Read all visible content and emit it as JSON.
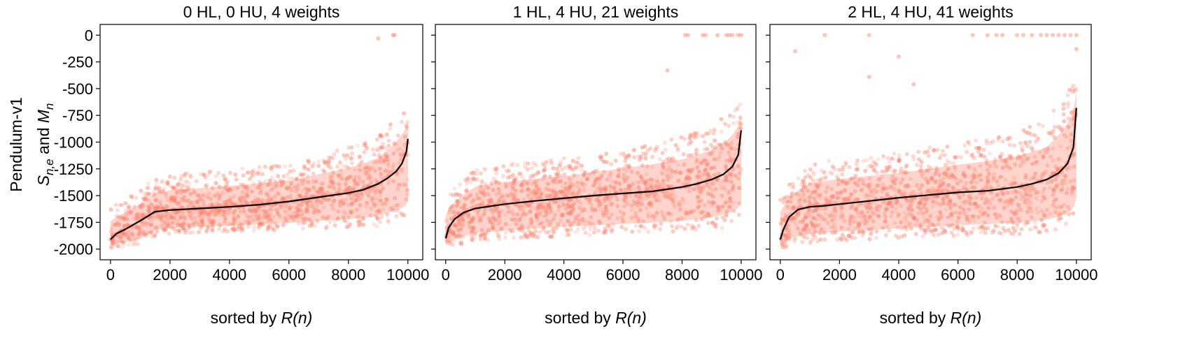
{
  "figure": {
    "row_label": "Pendulum-v1",
    "ylabel_prefix": "S",
    "ylabel_sub": "n,e",
    "ylabel_mid": " and ",
    "ylabel_m": "M",
    "ylabel_msub": "n",
    "xlabel_prefix": "sorted by ",
    "xlabel_italic": "R(n)"
  },
  "colors": {
    "scatter": "#fa7f6a",
    "band": "#ffcfc6",
    "mean_line": "#000000"
  },
  "chart_data": [
    {
      "type": "scatter",
      "title": "0 HL, 0 HU, 4 weights",
      "xlim": [
        -350,
        10500
      ],
      "ylim": [
        -2100,
        100
      ],
      "xticks": [
        "0",
        "2000",
        "4000",
        "6000",
        "8000",
        "10000"
      ],
      "yticks": [
        "0",
        "-250",
        "-500",
        "-750",
        "-1000",
        "-1250",
        "-1500",
        "-1750",
        "-2000"
      ],
      "series": [
        {
          "kind": "mean_line",
          "x": [
            0,
            200,
            500,
            1000,
            1500,
            2000,
            3000,
            4000,
            5000,
            6000,
            7000,
            7500,
            8000,
            8500,
            9000,
            9300,
            9600,
            9800,
            9950,
            10000
          ],
          "y": [
            -1910,
            -1855,
            -1815,
            -1735,
            -1650,
            -1635,
            -1620,
            -1605,
            -1585,
            -1555,
            -1515,
            -1495,
            -1475,
            -1445,
            -1390,
            -1340,
            -1275,
            -1200,
            -1090,
            -970
          ]
        },
        {
          "kind": "scatter_band",
          "x": [
            0,
            1000,
            1500,
            2000,
            4000,
            6000,
            8000,
            9000,
            9500,
            10000
          ],
          "upper": [
            -1600,
            -1450,
            -1330,
            -1300,
            -1250,
            -1200,
            -1050,
            -950,
            -800,
            -650
          ],
          "lower": [
            -1990,
            -1960,
            -1880,
            -1860,
            -1840,
            -1820,
            -1800,
            -1790,
            -1760,
            -1750
          ],
          "outliers": [
            [
              9500,
              0
            ],
            [
              9550,
              0
            ],
            [
              9000,
              -30
            ]
          ]
        }
      ]
    },
    {
      "type": "scatter",
      "title": "1 HL, 4 HU, 21 weights",
      "xlim": [
        -350,
        10500
      ],
      "ylim": [
        -2100,
        100
      ],
      "xticks": [
        "0",
        "2000",
        "4000",
        "6000",
        "8000",
        "10000"
      ],
      "series": [
        {
          "kind": "mean_line",
          "x": [
            0,
            100,
            300,
            600,
            1000,
            1500,
            2000,
            3000,
            4000,
            5000,
            6000,
            7000,
            8000,
            8500,
            9000,
            9400,
            9700,
            9900,
            10000
          ],
          "y": [
            -1900,
            -1800,
            -1720,
            -1660,
            -1620,
            -1600,
            -1580,
            -1550,
            -1525,
            -1500,
            -1480,
            -1460,
            -1420,
            -1390,
            -1350,
            -1300,
            -1230,
            -1120,
            -890
          ]
        },
        {
          "kind": "scatter_band",
          "x": [
            0,
            1000,
            2000,
            4000,
            6000,
            8000,
            9000,
            9500,
            10000
          ],
          "upper": [
            -1500,
            -1250,
            -1200,
            -1150,
            -1050,
            -950,
            -850,
            -750,
            -600
          ],
          "lower": [
            -1990,
            -1930,
            -1910,
            -1880,
            -1860,
            -1840,
            -1820,
            -1800,
            -1780
          ],
          "outliers": [
            [
              8100,
              0
            ],
            [
              8200,
              0
            ],
            [
              8700,
              0
            ],
            [
              8800,
              0
            ],
            [
              9200,
              0
            ],
            [
              9500,
              0
            ],
            [
              9600,
              0
            ],
            [
              9700,
              0
            ],
            [
              9900,
              0
            ],
            [
              10000,
              0
            ],
            [
              7500,
              -330
            ]
          ]
        }
      ]
    },
    {
      "type": "scatter",
      "title": "2 HL, 4 HU, 41 weights",
      "xlim": [
        -350,
        10500
      ],
      "ylim": [
        -2100,
        100
      ],
      "xticks": [
        "0",
        "2000",
        "4000",
        "6000",
        "8000",
        "10000"
      ],
      "series": [
        {
          "kind": "mean_line",
          "x": [
            0,
            100,
            300,
            600,
            1000,
            1500,
            2000,
            3000,
            4000,
            5000,
            6000,
            7000,
            8000,
            8500,
            9000,
            9400,
            9700,
            9900,
            10000
          ],
          "y": [
            -1910,
            -1820,
            -1700,
            -1630,
            -1605,
            -1595,
            -1580,
            -1550,
            -1520,
            -1495,
            -1470,
            -1455,
            -1420,
            -1390,
            -1350,
            -1290,
            -1200,
            -1050,
            -680
          ]
        },
        {
          "kind": "scatter_band",
          "x": [
            0,
            1000,
            2000,
            4000,
            6000,
            8000,
            9000,
            9500,
            10000
          ],
          "upper": [
            -1450,
            -1200,
            -1150,
            -1100,
            -1000,
            -900,
            -800,
            -600,
            -400
          ],
          "lower": [
            -1990,
            -1940,
            -1920,
            -1900,
            -1880,
            -1860,
            -1850,
            -1830,
            -1800
          ],
          "outliers": [
            [
              1500,
              0
            ],
            [
              3000,
              0
            ],
            [
              6500,
              0
            ],
            [
              7000,
              0
            ],
            [
              7300,
              0
            ],
            [
              7500,
              0
            ],
            [
              8000,
              0
            ],
            [
              8200,
              0
            ],
            [
              8500,
              0
            ],
            [
              8800,
              0
            ],
            [
              9000,
              0
            ],
            [
              9200,
              0
            ],
            [
              9400,
              0
            ],
            [
              9600,
              0
            ],
            [
              9800,
              0
            ],
            [
              10000,
              0
            ],
            [
              500,
              -150
            ],
            [
              3000,
              -390
            ],
            [
              4000,
              -200
            ],
            [
              4500,
              -460
            ],
            [
              10000,
              -130
            ]
          ]
        }
      ]
    }
  ]
}
